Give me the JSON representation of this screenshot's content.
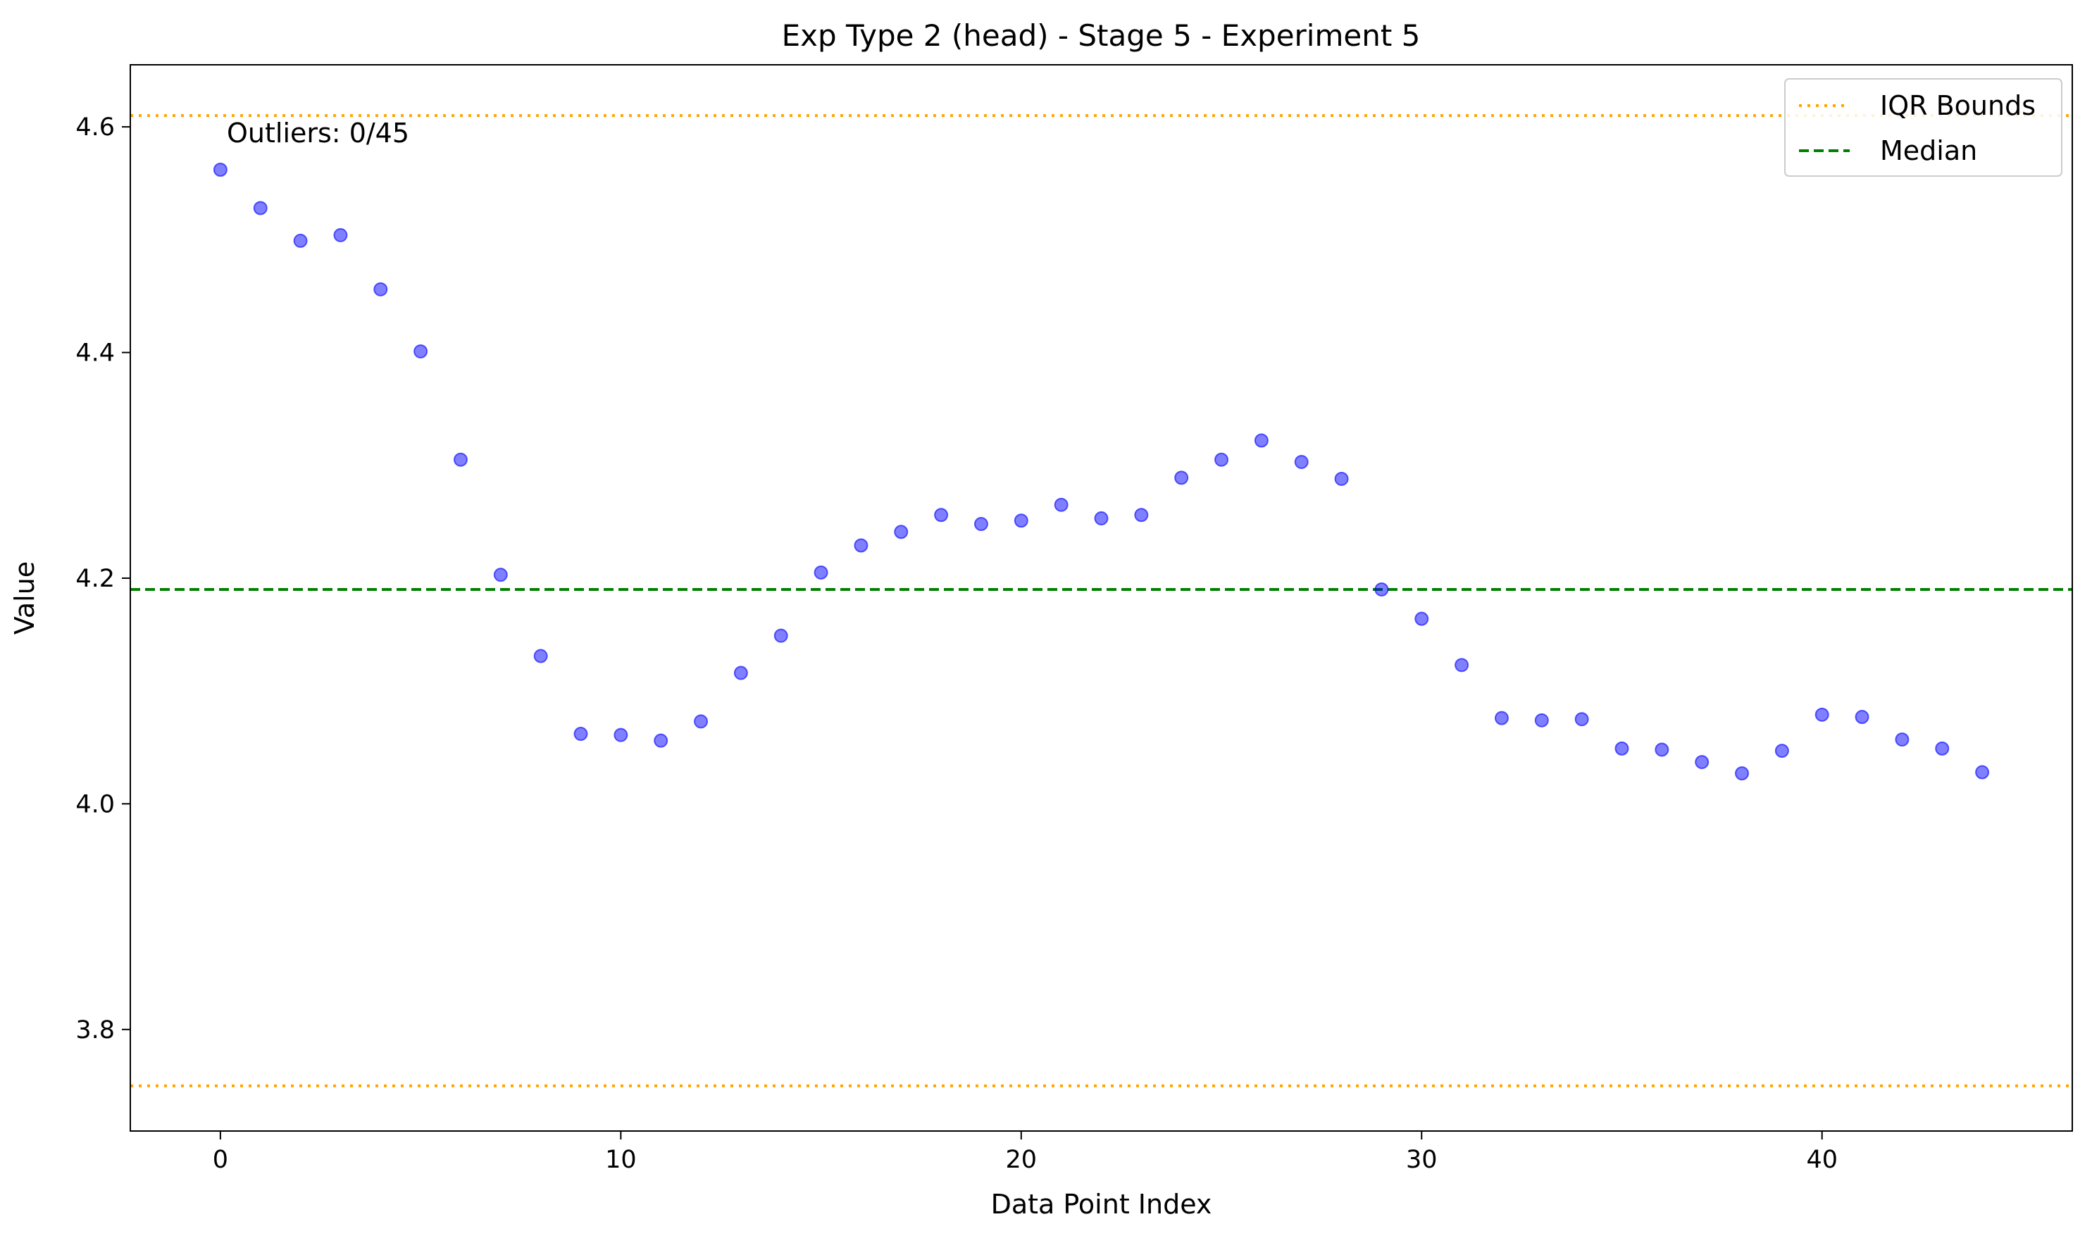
{
  "chart_data": {
    "type": "scatter",
    "title": "Exp Type 2 (head) - Stage 5 - Experiment 5",
    "xlabel": "Data Point Index",
    "ylabel": "Value",
    "xlim": [
      -2.25,
      46.25
    ],
    "ylim": [
      3.71,
      4.655
    ],
    "xticks": [
      0,
      10,
      20,
      30,
      40
    ],
    "xtick_labels": [
      "0",
      "10",
      "20",
      "30",
      "40"
    ],
    "yticks": [
      3.8,
      4.0,
      4.2,
      4.4,
      4.6
    ],
    "ytick_labels": [
      "3.8",
      "4.0",
      "4.2",
      "4.4",
      "4.6"
    ],
    "grid": false,
    "legend_position": "top-right",
    "annotation": "Outliers: 0/45",
    "series": [
      {
        "values": [
          4.562,
          4.528,
          4.499,
          4.504,
          4.456,
          4.401,
          4.305,
          4.203,
          4.131,
          4.062,
          4.061,
          4.056,
          4.073,
          4.116,
          4.149,
          4.205,
          4.229,
          4.241,
          4.256,
          4.248,
          4.251,
          4.265,
          4.253,
          4.256,
          4.289,
          4.305,
          4.322,
          4.303,
          4.288,
          4.19,
          4.164,
          4.123,
          4.076,
          4.074,
          4.075,
          4.049,
          4.048,
          4.037,
          4.027,
          4.047,
          4.079,
          4.077,
          4.057,
          4.049,
          4.028
        ],
        "color": "#0000ff"
      }
    ],
    "reference_lines": [
      {
        "name": "IQR Bounds",
        "values": [
          4.61,
          3.75
        ],
        "color": "#ffa500",
        "style": "dotted"
      },
      {
        "name": "Median",
        "values": [
          4.19
        ],
        "color": "#008000",
        "style": "dashed"
      }
    ]
  }
}
